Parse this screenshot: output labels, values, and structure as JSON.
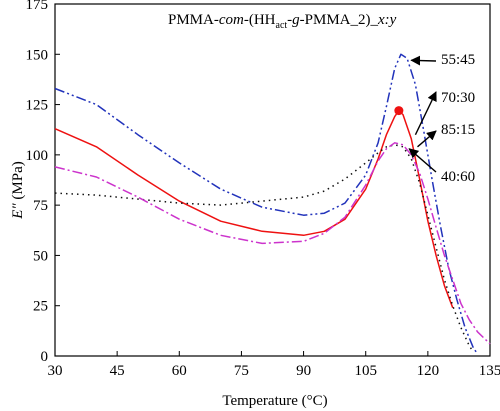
{
  "chart_data": {
    "type": "line",
    "title_parts": [
      "PMMA-",
      "com",
      "-(HH",
      "act",
      "-",
      "g",
      "-PMMA_2)_",
      "x:y"
    ],
    "xlabel": "Temperature (°C)",
    "ylabel_main": "E″",
    "ylabel_unit": " (MPa)",
    "xlim": [
      30,
      135
    ],
    "ylim": [
      0,
      175
    ],
    "xticks": [
      30,
      45,
      60,
      75,
      90,
      105,
      120,
      135
    ],
    "yticks": [
      0,
      25,
      50,
      75,
      100,
      125,
      150,
      175
    ],
    "grid": false,
    "series": [
      {
        "name": "55:45",
        "color": "#2233bb",
        "dash": "10,3,2,3,2,3",
        "x": [
          30,
          40,
          50,
          60,
          70,
          80,
          90,
          95,
          100,
          105,
          108,
          110,
          112,
          113.5,
          115,
          117,
          119,
          121,
          123,
          125,
          127,
          129,
          131,
          132
        ],
        "y": [
          133,
          125,
          110,
          96,
          83,
          74,
          70,
          71,
          76,
          90,
          106,
          124,
          143,
          150,
          148,
          135,
          112,
          88,
          65,
          44,
          28,
          14,
          4,
          1
        ]
      },
      {
        "name": "70:30",
        "color": "#ee1111",
        "dash": "",
        "x": [
          30,
          40,
          50,
          60,
          70,
          80,
          90,
          95,
          100,
          105,
          108,
          110,
          112,
          113,
          114,
          116,
          118,
          120,
          122,
          124,
          126
        ],
        "y": [
          113,
          104,
          90,
          77,
          67,
          62,
          60,
          62,
          68,
          83,
          98,
          110,
          119,
          122,
          120,
          108,
          88,
          67,
          50,
          35,
          24
        ]
      },
      {
        "name": "85:15",
        "color": "#111111",
        "dash": "1.5,4",
        "x": [
          30,
          40,
          50,
          60,
          70,
          80,
          90,
          95,
          100,
          105,
          108,
          110,
          112,
          114,
          116,
          118,
          120,
          122,
          124,
          126,
          128,
          130,
          131
        ],
        "y": [
          81,
          80,
          78,
          76,
          75,
          77,
          79,
          82,
          88,
          96,
          101,
          104,
          105,
          104,
          98,
          86,
          70,
          54,
          38,
          25,
          14,
          5,
          2
        ]
      },
      {
        "name": "40:60",
        "color": "#cc33cc",
        "dash": "10,3,2,3",
        "x": [
          30,
          40,
          50,
          60,
          70,
          80,
          90,
          95,
          100,
          105,
          108,
          110,
          112,
          114,
          116,
          118,
          120,
          122,
          124,
          126,
          128,
          130,
          132,
          135
        ],
        "y": [
          94,
          89,
          79,
          68,
          60,
          56,
          57,
          61,
          69,
          85,
          97,
          103,
          106,
          105,
          100,
          91,
          78,
          64,
          50,
          38,
          26,
          18,
          12,
          6
        ]
      }
    ],
    "marker": {
      "series": "70:30",
      "x": 113,
      "y": 122,
      "color": "#ee1111"
    },
    "annotations": [
      {
        "label": "55:45",
        "point_x": 116,
        "point_y": 147
      },
      {
        "label": "70:30",
        "point_x": 117,
        "point_y": 110
      },
      {
        "label": "85:15",
        "point_x": 117.5,
        "point_y": 104
      },
      {
        "label": "40:60",
        "point_x": 115.5,
        "point_y": 103
      }
    ]
  }
}
